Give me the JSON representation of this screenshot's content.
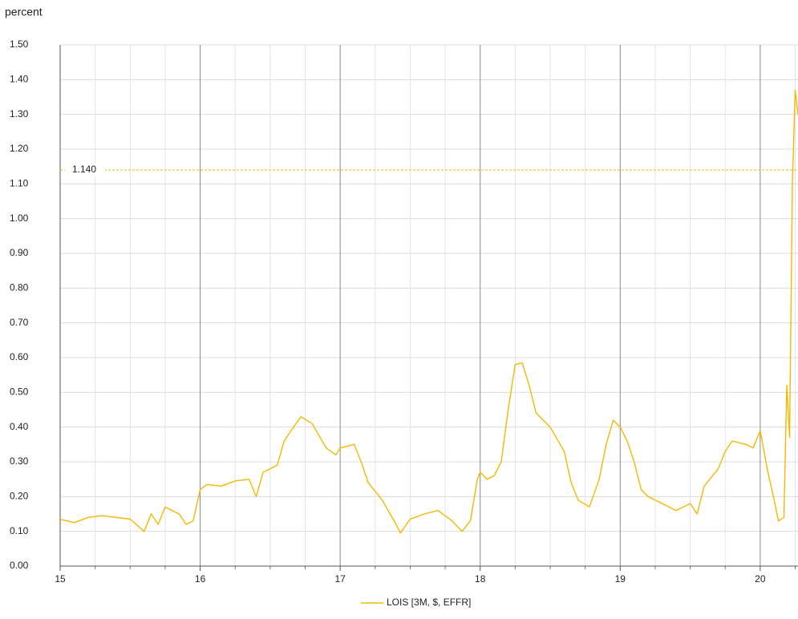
{
  "chart_data": {
    "type": "line",
    "y_axis_label": "percent",
    "x": [
      15.0,
      15.1,
      15.2,
      15.3,
      15.4,
      15.5,
      15.6,
      15.65,
      15.7,
      15.75,
      15.85,
      15.9,
      15.95,
      16.0,
      16.05,
      16.15,
      16.25,
      16.35,
      16.4,
      16.45,
      16.55,
      16.6,
      16.65,
      16.72,
      16.8,
      16.9,
      16.97,
      17.0,
      17.1,
      17.15,
      17.2,
      17.3,
      17.4,
      17.43,
      17.5,
      17.6,
      17.7,
      17.8,
      17.87,
      17.93,
      17.98,
      18.0,
      18.05,
      18.1,
      18.15,
      18.2,
      18.25,
      18.3,
      18.35,
      18.4,
      18.5,
      18.6,
      18.65,
      18.7,
      18.78,
      18.85,
      18.9,
      18.95,
      19.0,
      19.05,
      19.1,
      19.15,
      19.2,
      19.3,
      19.4,
      19.5,
      19.55,
      19.6,
      19.7,
      19.75,
      19.8,
      19.9,
      19.95,
      20.0,
      20.05,
      20.1,
      20.13,
      20.17,
      20.19,
      20.21,
      20.23,
      20.25,
      20.27
    ],
    "series": [
      {
        "name": "LOIS [3M, $, EFFR]",
        "color": "#f5b800",
        "values": [
          0.135,
          0.125,
          0.14,
          0.145,
          0.14,
          0.135,
          0.1,
          0.15,
          0.12,
          0.17,
          0.15,
          0.12,
          0.13,
          0.22,
          0.235,
          0.23,
          0.245,
          0.25,
          0.2,
          0.27,
          0.29,
          0.36,
          0.39,
          0.43,
          0.41,
          0.34,
          0.32,
          0.34,
          0.35,
          0.3,
          0.24,
          0.19,
          0.12,
          0.095,
          0.135,
          0.15,
          0.16,
          0.13,
          0.1,
          0.13,
          0.25,
          0.27,
          0.25,
          0.26,
          0.3,
          0.45,
          0.58,
          0.585,
          0.52,
          0.44,
          0.4,
          0.33,
          0.24,
          0.19,
          0.17,
          0.25,
          0.35,
          0.42,
          0.4,
          0.36,
          0.3,
          0.22,
          0.2,
          0.18,
          0.16,
          0.18,
          0.15,
          0.23,
          0.28,
          0.33,
          0.36,
          0.35,
          0.34,
          0.39,
          0.28,
          0.19,
          0.13,
          0.14,
          0.52,
          0.37,
          1.1,
          1.37,
          1.3
        ]
      }
    ],
    "reference_line": {
      "value": 1.14,
      "label": "1.140"
    },
    "xlim": [
      15,
      20.27
    ],
    "xticks": [
      15,
      16,
      17,
      18,
      19,
      20
    ],
    "xminorticks": [
      15.25,
      15.5,
      15.75,
      16.25,
      16.5,
      16.75,
      17.25,
      17.5,
      17.75,
      18.25,
      18.5,
      18.75,
      19.25,
      19.5,
      19.75,
      20.25
    ],
    "ylim": [
      0,
      1.5
    ],
    "yticks": [
      {
        "value": 0,
        "label": "0.00"
      },
      {
        "value": 0.1,
        "label": "0.10"
      },
      {
        "value": 0.2,
        "label": "0.20"
      },
      {
        "value": 0.3,
        "label": "0.30"
      },
      {
        "value": 0.4,
        "label": "0.40"
      },
      {
        "value": 0.5,
        "label": "0.50"
      },
      {
        "value": 0.6,
        "label": "0.60"
      },
      {
        "value": 0.7,
        "label": "0.70"
      },
      {
        "value": 0.8,
        "label": "0.80"
      },
      {
        "value": 0.9,
        "label": "0.90"
      },
      {
        "value": 1.0,
        "label": "1.00"
      },
      {
        "value": 1.1,
        "label": "1.10"
      },
      {
        "value": 1.2,
        "label": "1.20"
      },
      {
        "value": 1.3,
        "label": "1.30"
      },
      {
        "value": 1.4,
        "label": "1.40"
      },
      {
        "value": 1.5,
        "label": "1.50"
      }
    ],
    "grid": true
  }
}
